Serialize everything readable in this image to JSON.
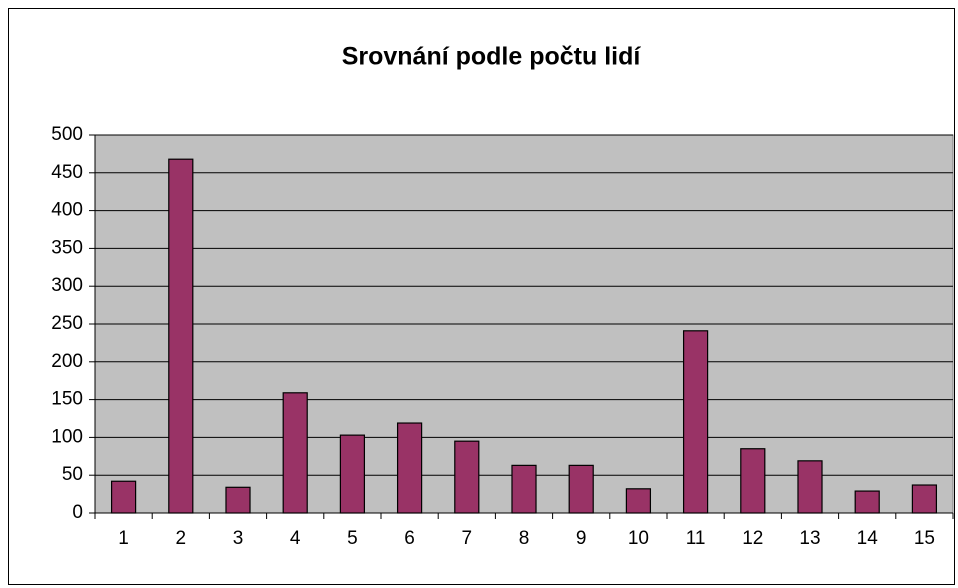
{
  "chart_data": {
    "type": "bar",
    "title": "Srovnání podle počtu lidí",
    "categories": [
      "1",
      "2",
      "3",
      "4",
      "5",
      "6",
      "7",
      "8",
      "9",
      "10",
      "11",
      "12",
      "13",
      "14",
      "15"
    ],
    "values": [
      42,
      468,
      34,
      159,
      103,
      119,
      95,
      63,
      63,
      32,
      241,
      85,
      69,
      29,
      37
    ],
    "color": "#993366",
    "ylim": [
      0,
      500
    ],
    "yticks": [
      0,
      50,
      100,
      150,
      200,
      250,
      300,
      350,
      400,
      450,
      500
    ],
    "grid": true
  }
}
